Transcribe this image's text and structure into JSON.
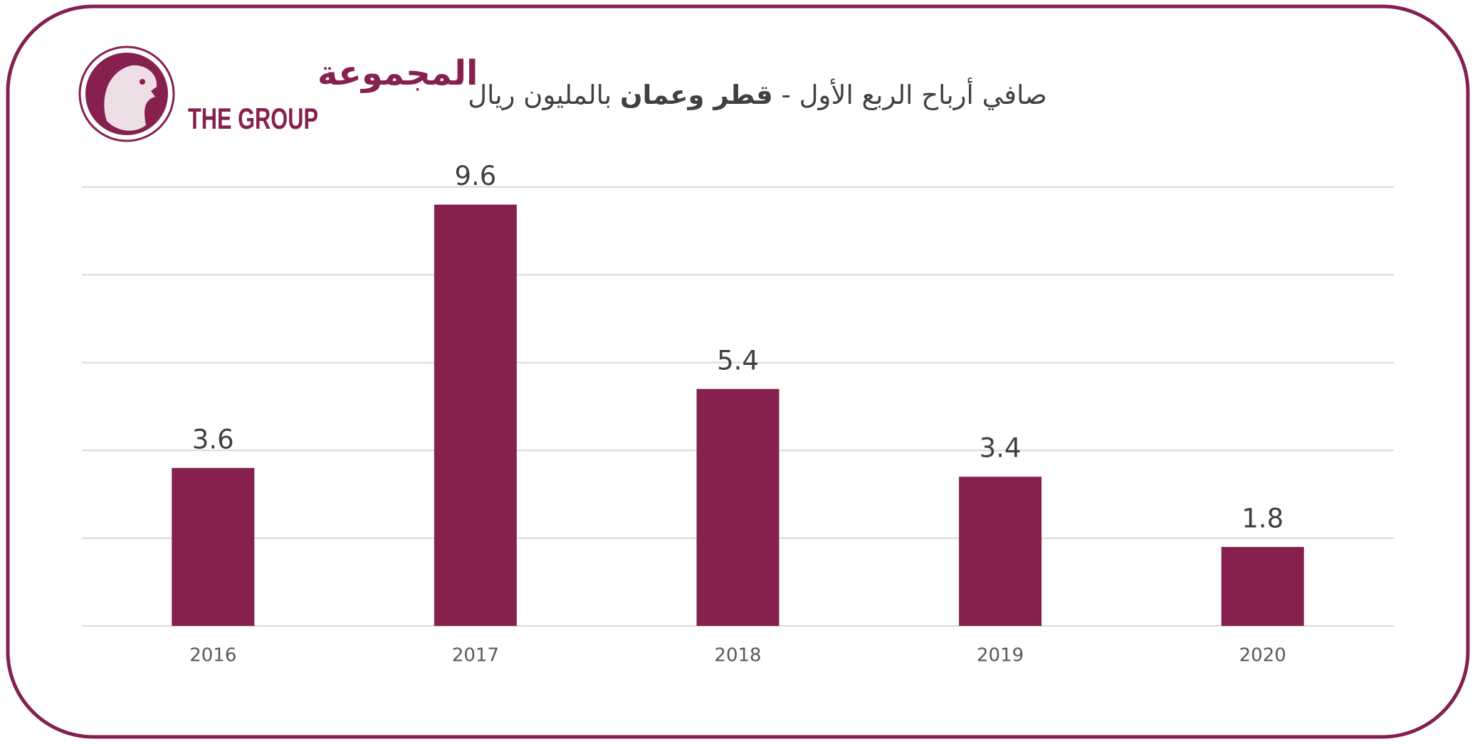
{
  "logo": {
    "arabic": "المجموعة",
    "english": "THE GROUP"
  },
  "chart_data": {
    "type": "bar",
    "title": [
      {
        "text": "صافي أرباح الربع الأول - ",
        "bold": false
      },
      {
        "text": "قطر وعمان",
        "bold": true
      },
      {
        "text": " بالمليون ريال",
        "bold": false
      }
    ],
    "categories": [
      "2016",
      "2017",
      "2018",
      "2019",
      "2020"
    ],
    "values": [
      3.6,
      9.6,
      5.4,
      3.4,
      1.8
    ],
    "color": "#86204f",
    "ylim": [
      0,
      10
    ],
    "yticks": [
      0,
      2,
      4,
      6,
      8,
      10
    ],
    "grid": true
  }
}
